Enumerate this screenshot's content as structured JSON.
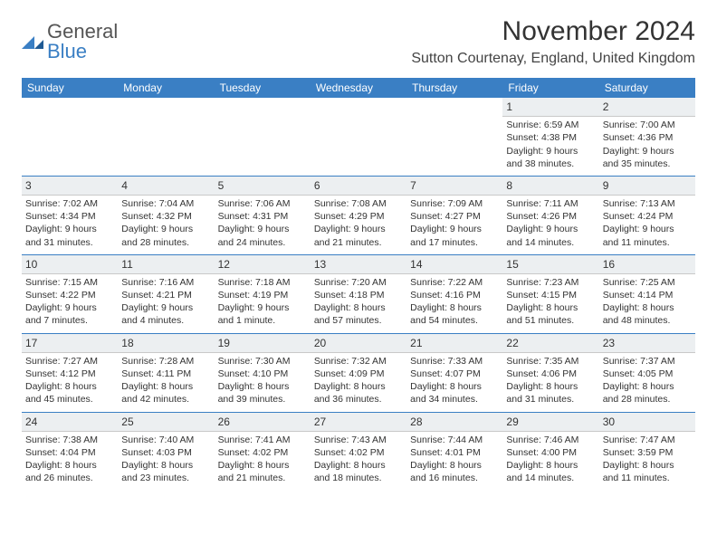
{
  "logo": {
    "word1": "General",
    "word2": "Blue"
  },
  "title": "November 2024",
  "location": "Sutton Courtenay, England, United Kingdom",
  "colors": {
    "header_bg": "#3a7fc4",
    "header_text": "#ffffff",
    "daynum_bg": "#eceff1",
    "text": "#333333",
    "rule": "#3a7fc4"
  },
  "dow": [
    "Sunday",
    "Monday",
    "Tuesday",
    "Wednesday",
    "Thursday",
    "Friday",
    "Saturday"
  ],
  "weeks": [
    [
      {
        "n": "",
        "sr": "",
        "ss": "",
        "dl": ""
      },
      {
        "n": "",
        "sr": "",
        "ss": "",
        "dl": ""
      },
      {
        "n": "",
        "sr": "",
        "ss": "",
        "dl": ""
      },
      {
        "n": "",
        "sr": "",
        "ss": "",
        "dl": ""
      },
      {
        "n": "",
        "sr": "",
        "ss": "",
        "dl": ""
      },
      {
        "n": "1",
        "sr": "Sunrise: 6:59 AM",
        "ss": "Sunset: 4:38 PM",
        "dl": "Daylight: 9 hours and 38 minutes."
      },
      {
        "n": "2",
        "sr": "Sunrise: 7:00 AM",
        "ss": "Sunset: 4:36 PM",
        "dl": "Daylight: 9 hours and 35 minutes."
      }
    ],
    [
      {
        "n": "3",
        "sr": "Sunrise: 7:02 AM",
        "ss": "Sunset: 4:34 PM",
        "dl": "Daylight: 9 hours and 31 minutes."
      },
      {
        "n": "4",
        "sr": "Sunrise: 7:04 AM",
        "ss": "Sunset: 4:32 PM",
        "dl": "Daylight: 9 hours and 28 minutes."
      },
      {
        "n": "5",
        "sr": "Sunrise: 7:06 AM",
        "ss": "Sunset: 4:31 PM",
        "dl": "Daylight: 9 hours and 24 minutes."
      },
      {
        "n": "6",
        "sr": "Sunrise: 7:08 AM",
        "ss": "Sunset: 4:29 PM",
        "dl": "Daylight: 9 hours and 21 minutes."
      },
      {
        "n": "7",
        "sr": "Sunrise: 7:09 AM",
        "ss": "Sunset: 4:27 PM",
        "dl": "Daylight: 9 hours and 17 minutes."
      },
      {
        "n": "8",
        "sr": "Sunrise: 7:11 AM",
        "ss": "Sunset: 4:26 PM",
        "dl": "Daylight: 9 hours and 14 minutes."
      },
      {
        "n": "9",
        "sr": "Sunrise: 7:13 AM",
        "ss": "Sunset: 4:24 PM",
        "dl": "Daylight: 9 hours and 11 minutes."
      }
    ],
    [
      {
        "n": "10",
        "sr": "Sunrise: 7:15 AM",
        "ss": "Sunset: 4:22 PM",
        "dl": "Daylight: 9 hours and 7 minutes."
      },
      {
        "n": "11",
        "sr": "Sunrise: 7:16 AM",
        "ss": "Sunset: 4:21 PM",
        "dl": "Daylight: 9 hours and 4 minutes."
      },
      {
        "n": "12",
        "sr": "Sunrise: 7:18 AM",
        "ss": "Sunset: 4:19 PM",
        "dl": "Daylight: 9 hours and 1 minute."
      },
      {
        "n": "13",
        "sr": "Sunrise: 7:20 AM",
        "ss": "Sunset: 4:18 PM",
        "dl": "Daylight: 8 hours and 57 minutes."
      },
      {
        "n": "14",
        "sr": "Sunrise: 7:22 AM",
        "ss": "Sunset: 4:16 PM",
        "dl": "Daylight: 8 hours and 54 minutes."
      },
      {
        "n": "15",
        "sr": "Sunrise: 7:23 AM",
        "ss": "Sunset: 4:15 PM",
        "dl": "Daylight: 8 hours and 51 minutes."
      },
      {
        "n": "16",
        "sr": "Sunrise: 7:25 AM",
        "ss": "Sunset: 4:14 PM",
        "dl": "Daylight: 8 hours and 48 minutes."
      }
    ],
    [
      {
        "n": "17",
        "sr": "Sunrise: 7:27 AM",
        "ss": "Sunset: 4:12 PM",
        "dl": "Daylight: 8 hours and 45 minutes."
      },
      {
        "n": "18",
        "sr": "Sunrise: 7:28 AM",
        "ss": "Sunset: 4:11 PM",
        "dl": "Daylight: 8 hours and 42 minutes."
      },
      {
        "n": "19",
        "sr": "Sunrise: 7:30 AM",
        "ss": "Sunset: 4:10 PM",
        "dl": "Daylight: 8 hours and 39 minutes."
      },
      {
        "n": "20",
        "sr": "Sunrise: 7:32 AM",
        "ss": "Sunset: 4:09 PM",
        "dl": "Daylight: 8 hours and 36 minutes."
      },
      {
        "n": "21",
        "sr": "Sunrise: 7:33 AM",
        "ss": "Sunset: 4:07 PM",
        "dl": "Daylight: 8 hours and 34 minutes."
      },
      {
        "n": "22",
        "sr": "Sunrise: 7:35 AM",
        "ss": "Sunset: 4:06 PM",
        "dl": "Daylight: 8 hours and 31 minutes."
      },
      {
        "n": "23",
        "sr": "Sunrise: 7:37 AM",
        "ss": "Sunset: 4:05 PM",
        "dl": "Daylight: 8 hours and 28 minutes."
      }
    ],
    [
      {
        "n": "24",
        "sr": "Sunrise: 7:38 AM",
        "ss": "Sunset: 4:04 PM",
        "dl": "Daylight: 8 hours and 26 minutes."
      },
      {
        "n": "25",
        "sr": "Sunrise: 7:40 AM",
        "ss": "Sunset: 4:03 PM",
        "dl": "Daylight: 8 hours and 23 minutes."
      },
      {
        "n": "26",
        "sr": "Sunrise: 7:41 AM",
        "ss": "Sunset: 4:02 PM",
        "dl": "Daylight: 8 hours and 21 minutes."
      },
      {
        "n": "27",
        "sr": "Sunrise: 7:43 AM",
        "ss": "Sunset: 4:02 PM",
        "dl": "Daylight: 8 hours and 18 minutes."
      },
      {
        "n": "28",
        "sr": "Sunrise: 7:44 AM",
        "ss": "Sunset: 4:01 PM",
        "dl": "Daylight: 8 hours and 16 minutes."
      },
      {
        "n": "29",
        "sr": "Sunrise: 7:46 AM",
        "ss": "Sunset: 4:00 PM",
        "dl": "Daylight: 8 hours and 14 minutes."
      },
      {
        "n": "30",
        "sr": "Sunrise: 7:47 AM",
        "ss": "Sunset: 3:59 PM",
        "dl": "Daylight: 8 hours and 11 minutes."
      }
    ]
  ]
}
